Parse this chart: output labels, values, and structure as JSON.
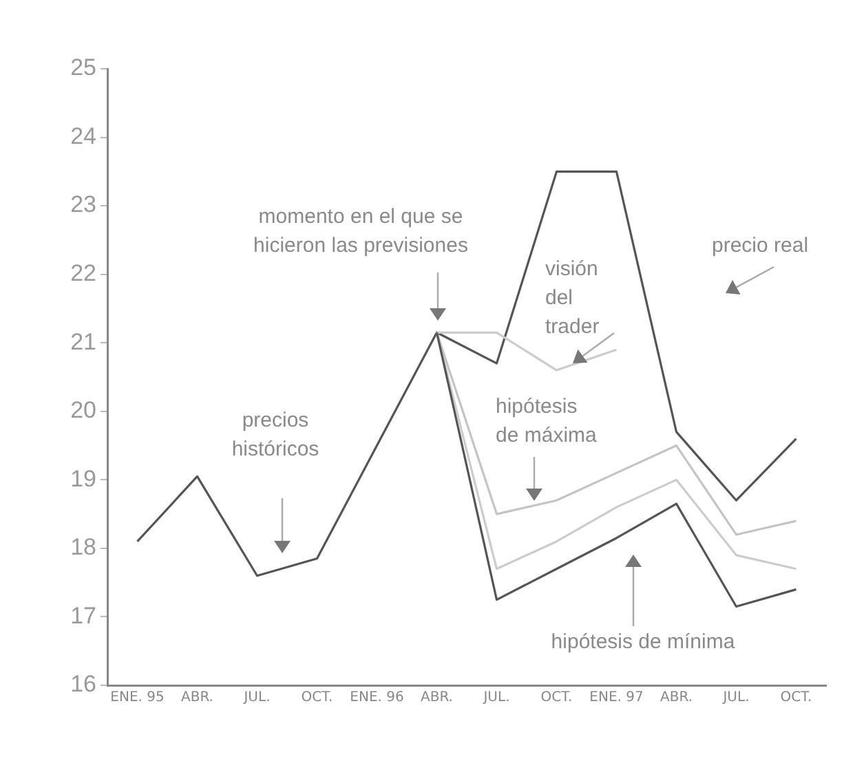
{
  "chart_data": {
    "type": "line",
    "categories": [
      "ENE. 95",
      "ABR.",
      "JUL.",
      "OCT.",
      "ENE. 96",
      "ABR.",
      "JUL.",
      "OCT.",
      "ENE. 97",
      "ABR.",
      "JUL.",
      "OCT."
    ],
    "series": [
      {
        "color": "#555555",
        "values": [
          18.1,
          19.05,
          17.6,
          17.85,
          19.5,
          21.15,
          20.7,
          23.5,
          23.5,
          19.7,
          18.7,
          19.6
        ]
      },
      {
        "color": "#cccccc",
        "values": [
          null,
          null,
          null,
          null,
          null,
          21.15,
          21.15,
          20.6,
          20.9,
          null,
          null,
          null
        ]
      },
      {
        "color": "#c4c4c4",
        "values": [
          null,
          null,
          null,
          null,
          null,
          21.15,
          18.5,
          18.7,
          19.1,
          19.5,
          18.2,
          18.4
        ]
      },
      {
        "color": "#cccccc",
        "values": [
          null,
          null,
          null,
          null,
          null,
          21.15,
          17.7,
          18.1,
          18.6,
          19.0,
          17.9,
          17.7
        ]
      },
      {
        "color": "#555555",
        "values": [
          null,
          null,
          null,
          null,
          null,
          21.15,
          17.25,
          17.7,
          18.15,
          18.65,
          17.15,
          17.4
        ]
      }
    ],
    "ylim": [
      16,
      25
    ],
    "yticks": [
      16,
      17,
      18,
      19,
      20,
      21,
      22,
      23,
      24,
      25
    ],
    "grid": false,
    "legend": false,
    "marker": "none",
    "line_style": "solid",
    "annotations": [
      "momento en el que se\nhicieron las previsiones",
      "precios\nhistóricos",
      "visión\ndel\ntrader",
      "precio real",
      "hipótesis\nde máxima",
      "hipótesis de mínima"
    ]
  }
}
